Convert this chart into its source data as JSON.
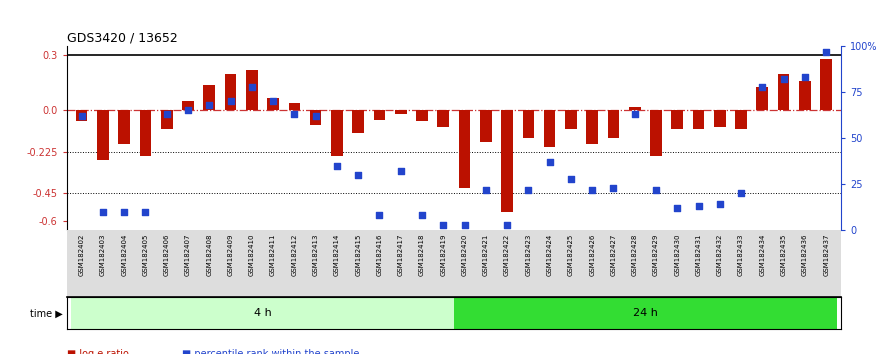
{
  "title": "GDS3420 / 13652",
  "samples": [
    "GSM182402",
    "GSM182403",
    "GSM182404",
    "GSM182405",
    "GSM182406",
    "GSM182407",
    "GSM182408",
    "GSM182409",
    "GSM182410",
    "GSM182411",
    "GSM182412",
    "GSM182413",
    "GSM182414",
    "GSM182415",
    "GSM182416",
    "GSM182417",
    "GSM182418",
    "GSM182419",
    "GSM182420",
    "GSM182421",
    "GSM182422",
    "GSM182423",
    "GSM182424",
    "GSM182425",
    "GSM182426",
    "GSM182427",
    "GSM182428",
    "GSM182429",
    "GSM182430",
    "GSM182431",
    "GSM182432",
    "GSM182433",
    "GSM182434",
    "GSM182435",
    "GSM182436",
    "GSM182437"
  ],
  "log_ratio": [
    -0.06,
    -0.27,
    -0.18,
    -0.25,
    -0.1,
    0.05,
    0.14,
    0.2,
    0.22,
    0.07,
    0.04,
    -0.08,
    -0.25,
    -0.12,
    -0.05,
    -0.02,
    -0.06,
    -0.09,
    -0.42,
    -0.17,
    -0.55,
    -0.15,
    -0.2,
    -0.1,
    -0.18,
    -0.15,
    0.02,
    -0.25,
    -0.1,
    -0.1,
    -0.09,
    -0.1,
    0.13,
    0.2,
    0.16,
    0.28
  ],
  "percentile": [
    62,
    10,
    10,
    10,
    63,
    65,
    68,
    70,
    78,
    70,
    63,
    62,
    35,
    30,
    8,
    32,
    8,
    3,
    3,
    22,
    3,
    22,
    37,
    28,
    22,
    23,
    63,
    22,
    12,
    13,
    14,
    20,
    78,
    82,
    83,
    97
  ],
  "group1_count": 18,
  "group2_count": 18,
  "group1_label": "4 h",
  "group2_label": "24 h",
  "ylim_left": [
    -0.65,
    0.35
  ],
  "ylim_right": [
    0,
    100
  ],
  "yticks_left": [
    -0.6,
    -0.45,
    -0.225,
    0.0,
    0.3
  ],
  "yticks_right": [
    0,
    25,
    50,
    75,
    100
  ],
  "bar_color": "#BB1100",
  "dot_color": "#2244CC",
  "zero_line_color": "#CC3333",
  "bg_color": "#ffffff",
  "xtick_bg": "#DDDDDD",
  "group1_bg": "#CCFFCC",
  "group2_bg": "#33DD33",
  "time_label": "time"
}
